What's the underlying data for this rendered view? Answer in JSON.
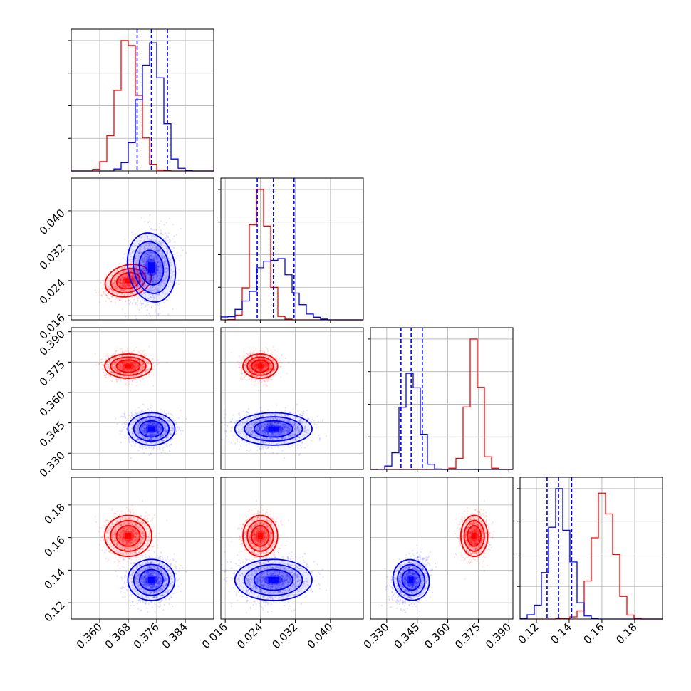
{
  "chart_data": {
    "type": "corner",
    "parameters": [
      {
        "id": "p1",
        "range": [
          0.352,
          0.392
        ],
        "ticks": [
          0.36,
          0.368,
          0.376,
          0.384
        ],
        "tick_labels": [
          "0.360",
          "0.368",
          "0.376",
          "0.384"
        ]
      },
      {
        "id": "p2",
        "range": [
          0.015,
          0.0475
        ],
        "ticks": [
          0.016,
          0.024,
          0.032,
          0.04
        ],
        "tick_labels": [
          "0.016",
          "0.024",
          "0.032",
          "0.040"
        ]
      },
      {
        "id": "p3",
        "range": [
          0.322,
          0.392
        ],
        "ticks": [
          0.33,
          0.345,
          0.36,
          0.375,
          0.39
        ],
        "tick_labels": [
          "0.330",
          "0.345",
          "0.360",
          "0.375",
          "0.390"
        ]
      },
      {
        "id": "p4",
        "range": [
          0.11,
          0.197
        ],
        "ticks": [
          0.12,
          0.14,
          0.16,
          0.18
        ],
        "tick_labels": [
          "0.12",
          "0.14",
          "0.16",
          "0.18"
        ]
      }
    ],
    "series": [
      {
        "color": "#ff0000",
        "mean": [
          0.368,
          0.024,
          0.373,
          0.161
        ],
        "std": [
          0.003,
          0.0018,
          0.003,
          0.0063
        ],
        "corr_p1p2": 0.45,
        "corr_p3p4": 0.0
      },
      {
        "color": "#0000ff",
        "mean": [
          0.3745,
          0.027,
          0.342,
          0.134
        ],
        "std": [
          0.003,
          0.004,
          0.004,
          0.0063
        ],
        "corr_p1p2": 0.15,
        "corr_p3p4": 0.3,
        "quantiles": [
          [
            0.3705,
            0.3745,
            0.379
          ],
          [
            0.0233,
            0.027,
            0.0317
          ],
          [
            0.337,
            0.342,
            0.3475
          ],
          [
            0.1265,
            0.1335,
            0.1415
          ]
        ]
      }
    ],
    "grid": true,
    "colors": {
      "series_a": "#ff0000",
      "series_b": "#0000ff",
      "quantile_lines": "#0000ff",
      "grid": "#b0b0b0"
    }
  }
}
